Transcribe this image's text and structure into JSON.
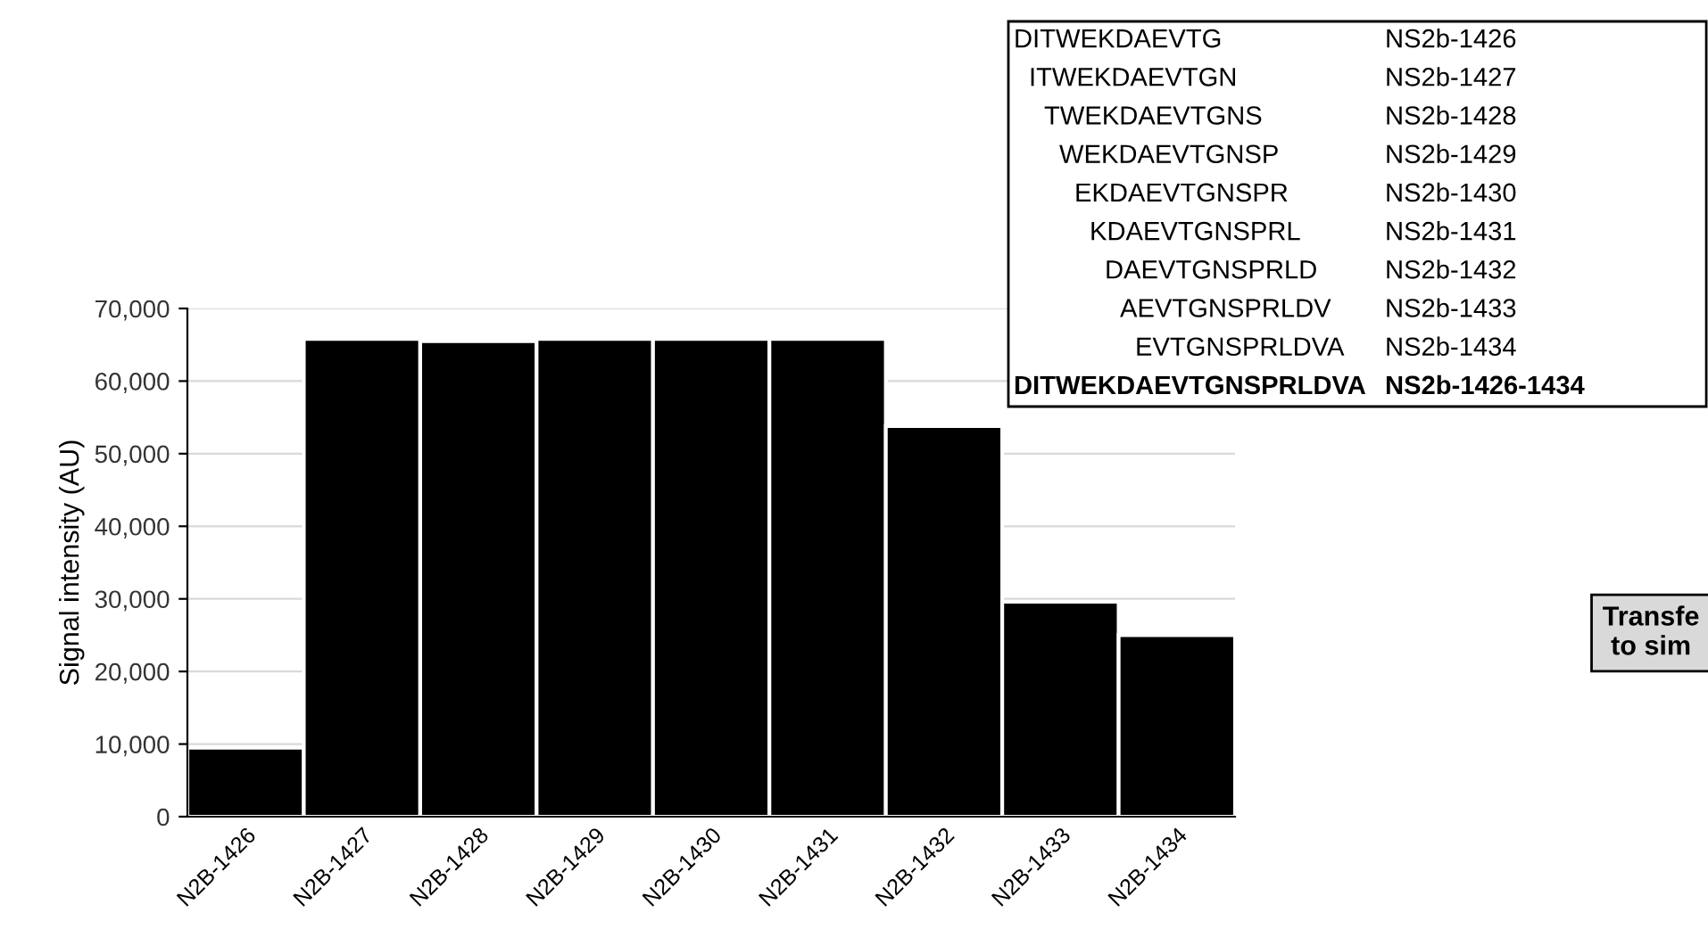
{
  "chart_data": {
    "type": "bar",
    "ylabel": "Signal intensity (AU)",
    "categories": [
      "N2B-1426",
      "N2B-1427",
      "N2B-1428",
      "N2B-1429",
      "N2B-1430",
      "N2B-1431",
      "N2B-1432",
      "N2B-1433",
      "N2B-1434"
    ],
    "values": [
      9500,
      65800,
      65500,
      65800,
      65800,
      65800,
      53800,
      29600,
      25000
    ],
    "color": "#000000",
    "ylim": [
      0,
      70000
    ],
    "yticks": [
      {
        "value": 0,
        "label": "0"
      },
      {
        "value": 10000,
        "label": "10,000"
      },
      {
        "value": 20000,
        "label": "20,000"
      },
      {
        "value": 30000,
        "label": "30,000"
      },
      {
        "value": 40000,
        "label": "40,000"
      },
      {
        "value": 50000,
        "label": "50,000"
      },
      {
        "value": 60000,
        "label": "60,000"
      },
      {
        "value": 70000,
        "label": "70,000"
      }
    ],
    "grid": "y",
    "annotations": [
      "DITWEKDAEVTG",
      "NS2b-1426",
      "ITWEKDAEVTGN",
      "NS2b-1427",
      "TWEKDAEVTGNS",
      "NS2b-1428",
      "WEKDAEVTGNSP",
      "NS2b-1429",
      "EKDAEVTGNSPR",
      "NS2b-1430",
      "KDAEVTGNSPRL",
      "NS2b-1431",
      "DAEVTGNSPRLD",
      "NS2b-1432",
      "AEVTGNSPRLDV",
      "NS2b-1433",
      "EVTGNSPRLDVA",
      "NS2b-1434",
      "DITWEKDAEVTGNSPRLDVA",
      "NS2b-1426-1434",
      "Transfe\nto sim"
    ]
  }
}
